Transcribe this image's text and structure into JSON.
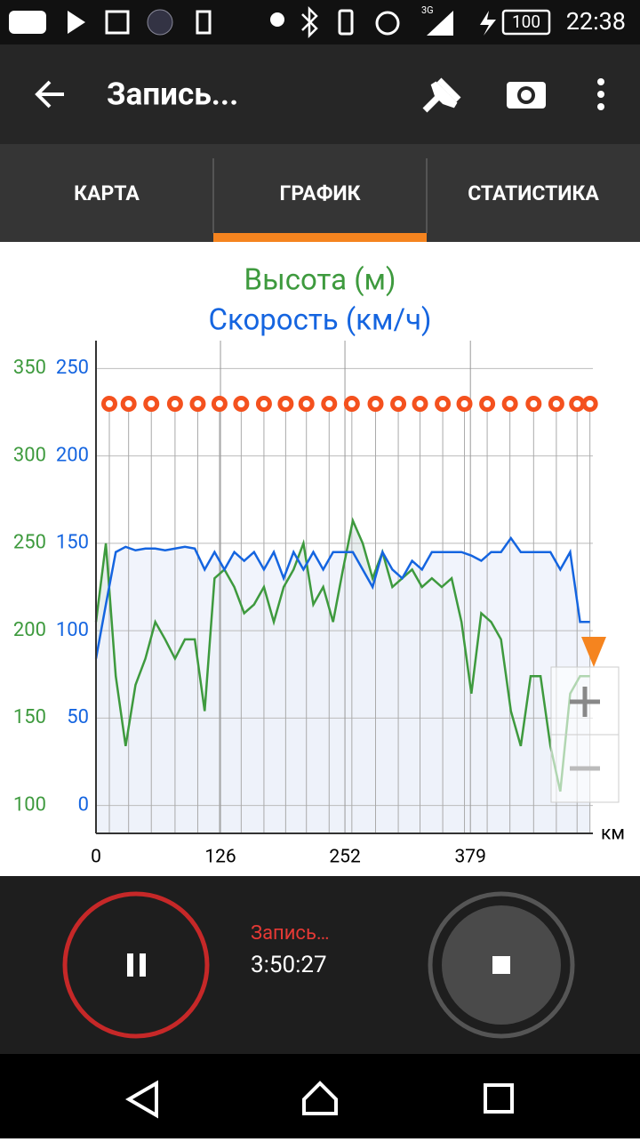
{
  "status_bar": {
    "network": "3G",
    "battery": "100",
    "time": "22:38"
  },
  "app_bar": {
    "title": "Запись..."
  },
  "tabs": [
    "КАРТА",
    "ГРАФИК",
    "СТАТИСТИКА"
  ],
  "chart_data": {
    "type": "line",
    "title": "Высота (м)",
    "subtitle": "Скорость (км/ч)",
    "x_label": "км",
    "x": [
      0,
      10,
      20,
      30,
      40,
      50,
      60,
      70,
      80,
      90,
      100,
      110,
      120,
      130,
      140,
      150,
      160,
      170,
      180,
      190,
      200,
      210,
      220,
      230,
      240,
      250,
      260,
      270,
      280,
      290,
      300,
      310,
      320,
      330,
      340,
      350,
      360,
      370,
      380,
      390,
      400,
      410,
      420,
      430,
      440,
      450,
      460,
      470,
      480,
      490,
      500
    ],
    "series": [
      {
        "name": "Высота (м)",
        "color": "#3e9a3e",
        "fill": "#e7eeee",
        "values": [
          205,
          250,
          174,
          134,
          169,
          184,
          205,
          195,
          184,
          195,
          195,
          154,
          230,
          235,
          225,
          210,
          215,
          225,
          205,
          225,
          235,
          250,
          215,
          225,
          205,
          235,
          263,
          250,
          230,
          245,
          225,
          230,
          235,
          225,
          230,
          225,
          230,
          205,
          164,
          210,
          205,
          195,
          154,
          134,
          174,
          174,
          134,
          108,
          164,
          174,
          174
        ]
      },
      {
        "name": "Скорость (км/ч)",
        "color": "#1565e0",
        "fill": "#eef2fb",
        "axis": "y2",
        "values": [
          84,
          115,
          145,
          148,
          146,
          147,
          147,
          146,
          147,
          148,
          147,
          135,
          145,
          135,
          145,
          140,
          145,
          135,
          145,
          130,
          145,
          135,
          145,
          135,
          145,
          145,
          145,
          135,
          125,
          145,
          135,
          130,
          140,
          135,
          145,
          145,
          145,
          145,
          143,
          140,
          145,
          145,
          153,
          145,
          145,
          145,
          145,
          135,
          145,
          105,
          105
        ]
      }
    ],
    "markers_x": [
      13.5,
      33,
      56,
      80,
      103,
      125,
      147,
      170,
      192,
      213,
      236,
      259,
      283,
      306,
      328,
      351,
      373,
      396,
      419,
      443,
      466,
      487,
      500
    ],
    "xlim": [
      0,
      503
    ],
    "xticks": [
      0,
      126,
      252,
      379
    ],
    "ylim": [
      84,
      366
    ],
    "yticks": [
      100,
      150,
      200,
      250,
      300,
      350
    ],
    "y2lim": [
      -16,
      266
    ],
    "y2ticks": [
      0,
      50,
      100,
      150,
      200,
      250
    ],
    "grid": true
  },
  "recording": {
    "status": "Запись…",
    "elapsed": "3:50:27"
  }
}
